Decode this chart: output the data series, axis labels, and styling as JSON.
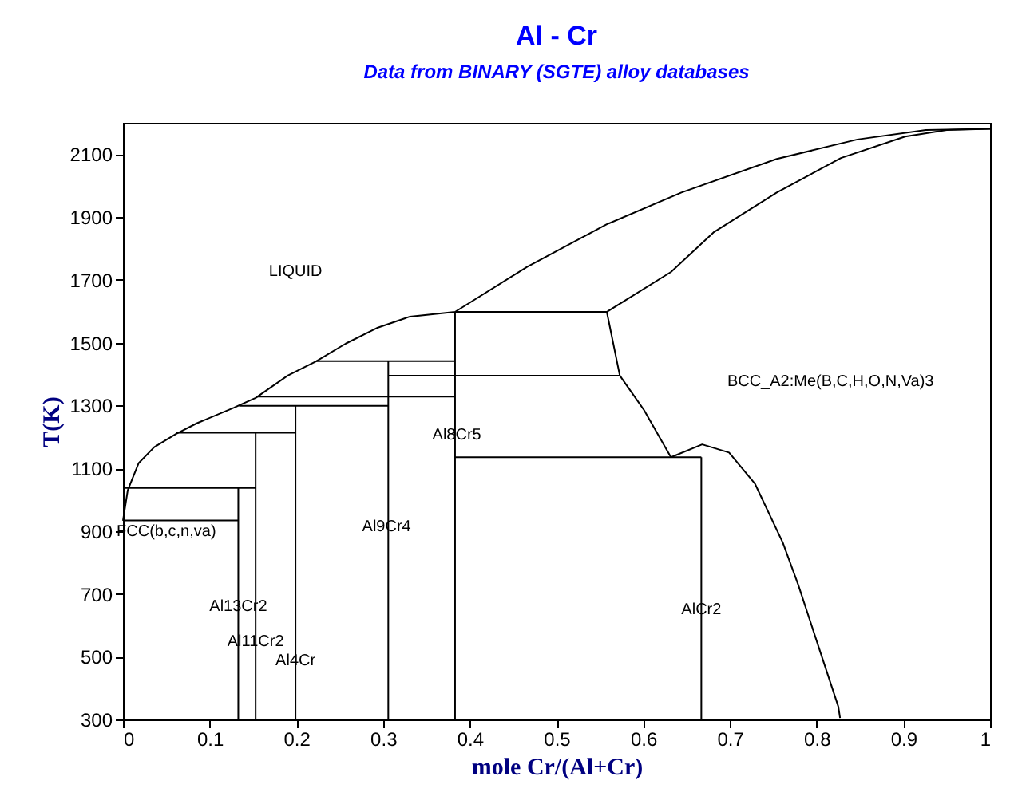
{
  "chart_data": {
    "type": "line",
    "title": "Al - Cr",
    "subtitle": "Data from BINARY (SGTE) alloy databases",
    "xlabel": "mole Cr/(Al+Cr)",
    "ylabel": "T(K)",
    "xlim": [
      0,
      1
    ],
    "xticks": [
      0,
      0.1,
      0.2,
      0.3,
      0.4,
      0.5,
      0.6,
      0.7,
      0.8,
      0.9,
      1
    ],
    "ylim": [
      300,
      2200
    ],
    "yticks": [
      300,
      500,
      700,
      900,
      1100,
      1300,
      1500,
      1700,
      1900,
      2100
    ],
    "grid": false,
    "legend": false,
    "marker": "none",
    "line_style": "solid",
    "series": [
      {
        "color": "#000000",
        "x": [
          0,
          0.0055,
          0.018,
          0.036,
          0.061,
          0.085,
          0.128,
          0.153,
          0.19,
          0.223,
          0.257,
          0.294,
          0.331,
          0.383,
          0.466,
          0.558,
          0.644,
          0.754,
          0.847,
          0.926,
          1.0
        ],
        "values": [
          933,
          1030,
          1116,
          1167,
          1209,
          1243,
          1293,
          1324,
          1395,
          1441,
          1497,
          1548,
          1583,
          1598,
          1741,
          1877,
          1978,
          2085,
          2147,
          2177,
          2181
        ]
      },
      {
        "color": "#000000",
        "x": [
          0.558,
          0.632,
          0.681,
          0.754,
          0.828,
          0.902,
          0.95,
          1.0
        ],
        "values": [
          1598,
          1725,
          1851,
          1978,
          2088,
          2156,
          2177,
          2181
        ]
      },
      {
        "color": "#000000",
        "x": [
          0.558,
          0.573,
          0.601,
          0.632
        ],
        "values": [
          1598,
          1395,
          1285,
          1135
        ]
      },
      {
        "color": "#000000",
        "x": [
          0.632,
          0.668,
          0.699,
          0.729,
          0.761,
          0.779,
          0.803,
          0.825,
          0.827
        ],
        "values": [
          1135,
          1176,
          1150,
          1050,
          863,
          727,
          525,
          341,
          305
        ]
      },
      {
        "color": "#000000",
        "x": [
          0.383,
          0.558
        ],
        "values": [
          1598,
          1598
        ]
      },
      {
        "color": "#000000",
        "x": [
          0.306,
          0.573
        ],
        "values": [
          1395,
          1395
        ]
      },
      {
        "color": "#000000",
        "x": [
          0.223,
          0.383
        ],
        "values": [
          1441,
          1441
        ]
      },
      {
        "color": "#000000",
        "x": [
          0.153,
          0.383
        ],
        "values": [
          1328,
          1328
        ]
      },
      {
        "color": "#000000",
        "x": [
          0.134,
          0.306
        ],
        "values": [
          1299,
          1299
        ]
      },
      {
        "color": "#000000",
        "x": [
          0.061,
          0.199
        ],
        "values": [
          1213,
          1213
        ]
      },
      {
        "color": "#000000",
        "x": [
          0,
          0.153
        ],
        "values": [
          1037,
          1037
        ]
      },
      {
        "color": "#000000",
        "x": [
          0,
          0.133
        ],
        "values": [
          934,
          934
        ]
      },
      {
        "color": "#000000",
        "x": [
          0.383,
          0.667
        ],
        "values": [
          1135,
          1135
        ]
      },
      {
        "color": "#000000",
        "x": [
          0.133,
          0.133
        ],
        "values": [
          300,
          1037
        ]
      },
      {
        "color": "#000000",
        "x": [
          0.153,
          0.153
        ],
        "values": [
          300,
          1213
        ]
      },
      {
        "color": "#000000",
        "x": [
          0.199,
          0.199
        ],
        "values": [
          300,
          1299
        ]
      },
      {
        "color": "#000000",
        "x": [
          0.306,
          0.306
        ],
        "values": [
          300,
          1441
        ]
      },
      {
        "color": "#000000",
        "x": [
          0.383,
          0.383
        ],
        "values": [
          300,
          1598
        ]
      },
      {
        "color": "#000000",
        "x": [
          0.667,
          0.667
        ],
        "values": [
          300,
          1135
        ]
      }
    ],
    "annotations": [
      "LIQUID",
      "BCC_A2:Me(B,C,H,O,N,Va)3",
      {
        "text": "FCC(b,c,n,va)",
        "x": 0.05,
        "y": 934
      },
      {
        "text": "Al13Cr2",
        "x": 0.133,
        "y": 695
      },
      {
        "text": "Al11Cr2",
        "x": 0.153,
        "y": 584
      },
      {
        "text": "Al4Cr",
        "x": 0.199,
        "y": 523
      },
      {
        "text": "Al9Cr4",
        "x": 0.304,
        "y": 949
      },
      {
        "text": "Al8Cr5",
        "x": 0.385,
        "y": 1243
      },
      {
        "text": "AlCr2",
        "x": 0.667,
        "y": 685
      }
    ]
  }
}
